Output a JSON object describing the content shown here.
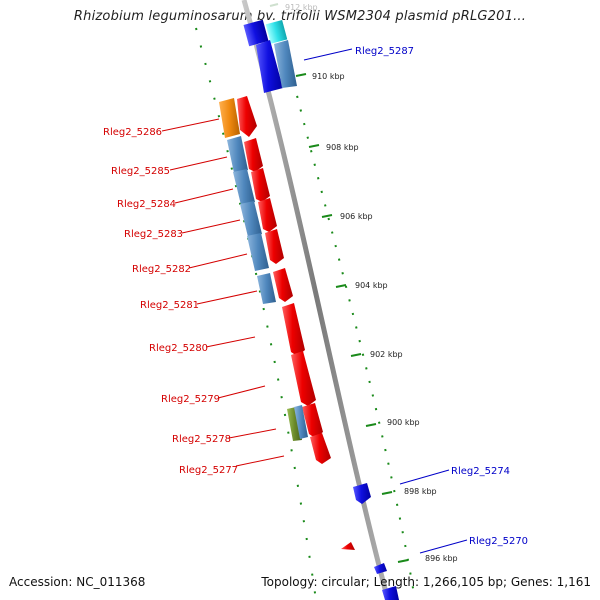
{
  "title": "Rhizobium leguminosarum bv. trifolii WSM2304 plasmid pRLG201...",
  "footer": {
    "accession": "Accession: NC_011368",
    "summary": "Topology: circular; Length: 1,266,105 bp; Genes: 1,161"
  },
  "colors": {
    "backbone": "#8a8a8a",
    "ring_dots": "#1a8a1a",
    "reverse_gene": "#ee0000",
    "forward_gene": "#1010e0",
    "cds_steel": "#4f87bd",
    "cds_orange": "#f0890f",
    "cds_olive": "#6b8a2a",
    "cds_cyan": "#2ee0e8",
    "reverse_label": "#d40000",
    "forward_label": "#0000c8"
  },
  "ticks": [
    {
      "label": "912 kbp",
      "faint": true
    },
    {
      "label": "910 kbp"
    },
    {
      "label": "908 kbp"
    },
    {
      "label": "906 kbp"
    },
    {
      "label": "904 kbp"
    },
    {
      "label": "902 kbp"
    },
    {
      "label": "900 kbp"
    },
    {
      "label": "898 kbp"
    },
    {
      "label": "896 kbp"
    }
  ],
  "reverse_labels": [
    "Rleg2_5286",
    "Rleg2_5285",
    "Rleg2_5284",
    "Rleg2_5283",
    "Rleg2_5282",
    "Rleg2_5281",
    "Rleg2_5280",
    "Rleg2_5279",
    "Rleg2_5278",
    "Rleg2_5277"
  ],
  "forward_labels": [
    "Rleg2_5287",
    "Rleg2_5274",
    "Rleg2_5270"
  ]
}
